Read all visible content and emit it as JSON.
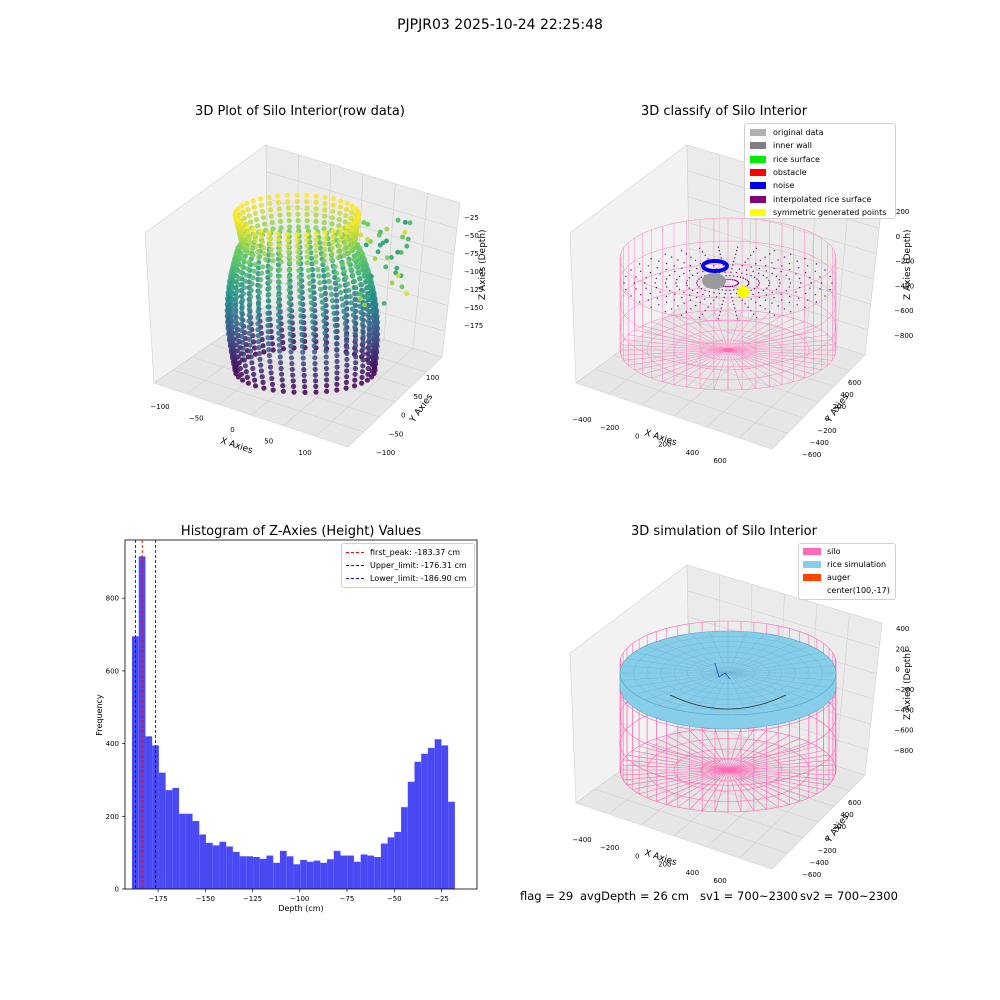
{
  "suptitle": "PJPJR03 2025-10-24 22:25:48",
  "panels": {
    "raw": {
      "title": "3D Plot of Silo Interior(row data)",
      "xlabel": "X Axies",
      "ylabel": "Y Axies",
      "zlabel": "Z Axies (Depth)",
      "xticks": [
        "−100",
        "−50",
        "0",
        "50",
        "100"
      ],
      "yticks": [
        "100",
        "50",
        "0",
        "−50",
        "−100"
      ],
      "zticks": [
        "−25",
        "−50",
        "−75",
        "−100",
        "−125",
        "−150",
        "−175"
      ]
    },
    "classify": {
      "title": "3D classify of Silo Interior",
      "xlabel": "X Axies",
      "ylabel": "Y Axies",
      "zlabel": "Z Axies (Depth)",
      "xticks": [
        "−400",
        "−200",
        "0",
        "200",
        "400",
        "600"
      ],
      "yticks": [
        "600",
        "400",
        "200",
        "0",
        "−200",
        "−400",
        "−600"
      ],
      "zticks": [
        "200",
        "0",
        "−200",
        "−400",
        "−600",
        "−800"
      ],
      "legend": [
        {
          "label": "original data",
          "color": "#b0b0b0"
        },
        {
          "label": "inner wall",
          "color": "#808080"
        },
        {
          "label": "rice surface",
          "color": "#00ee00"
        },
        {
          "label": "obstacle",
          "color": "#ff0000"
        },
        {
          "label": "noise",
          "color": "#0000ee"
        },
        {
          "label": "interpolated rice surface",
          "color": "#800080"
        },
        {
          "label": "symmetric generated points",
          "color": "#ffff00"
        }
      ]
    },
    "histogram": {
      "title": "Histogram of Z-Axies (Height) Values",
      "xlabel": "Depth (cm)",
      "ylabel": "Frequency",
      "legend": [
        {
          "label": "first_peak: -183.37 cm",
          "color": "#ff0000"
        },
        {
          "label": "Upper_limit: -176.31 cm",
          "color": "#0000ff"
        },
        {
          "label": "Lower_limit: -186.90 cm",
          "color": "#0000ff"
        }
      ]
    },
    "simulation": {
      "title": "3D simulation of Silo Interior",
      "xlabel": "X Axies",
      "ylabel": "Y Axies",
      "zlabel": "Z Axies (Depth)",
      "xticks": [
        "−400",
        "−200",
        "0",
        "200",
        "400",
        "600"
      ],
      "yticks": [
        "600",
        "400",
        "200",
        "0",
        "−200",
        "−400",
        "−600"
      ],
      "zticks": [
        "400",
        "200",
        "0",
        "−200",
        "−400",
        "−600",
        "−800"
      ],
      "legend": [
        {
          "label": "silo",
          "color": "#ff69b4"
        },
        {
          "label": "rice simulation",
          "color": "#87ceeb"
        },
        {
          "label": "auger",
          "color": "#ff4500"
        },
        {
          "label": "center(100,-17)",
          "color": "none"
        }
      ]
    }
  },
  "footer": {
    "flag": "flag = 29",
    "avg": "avgDepth = 26 cm",
    "sv1": "sv1 = 700~2300",
    "sv2": "sv2 = 700~2300"
  },
  "colors": {
    "hist_bar": "#4a4af5",
    "silo": "#ff69b4",
    "rice": "#87ceeb"
  },
  "chart_data": [
    {
      "type": "scatter",
      "title": "3D Plot of Silo Interior(row data)",
      "xlabel": "X Axies",
      "ylabel": "Y Axies",
      "zlabel": "Z Axies (Depth)",
      "xlim": [
        -120,
        130
      ],
      "ylim": [
        -110,
        120
      ],
      "zlim": [
        -190,
        -10
      ],
      "colormap": "viridis"
    },
    {
      "type": "scatter",
      "title": "3D classify of Silo Interior",
      "xlabel": "X Axies",
      "ylabel": "Y Axies",
      "zlabel": "Z Axies (Depth)",
      "xlim": [
        -500,
        700
      ],
      "ylim": [
        -650,
        650
      ],
      "zlim": [
        -900,
        300
      ],
      "series": [
        {
          "name": "original data"
        },
        {
          "name": "inner wall"
        },
        {
          "name": "rice surface"
        },
        {
          "name": "obstacle"
        },
        {
          "name": "noise"
        },
        {
          "name": "interpolated rice surface"
        },
        {
          "name": "symmetric generated points"
        }
      ]
    },
    {
      "type": "bar",
      "title": "Histogram of Z-Axies (Height) Values",
      "xlabel": "Depth (cm)",
      "ylabel": "Frequency",
      "xlim": [
        -192.5,
        -6.2
      ],
      "ylim": [
        0,
        960
      ],
      "xticks": [
        -175,
        -150,
        -125,
        -100,
        -75,
        -50,
        -25
      ],
      "yticks": [
        0,
        200,
        400,
        600,
        800
      ],
      "bin_start": -188.8,
      "bin_width": 3.56,
      "values": [
        695,
        915,
        420,
        395,
        320,
        272,
        278,
        207,
        207,
        187,
        150,
        127,
        120,
        130,
        117,
        102,
        90,
        90,
        88,
        83,
        92,
        72,
        105,
        90,
        68,
        80,
        75,
        78,
        72,
        82,
        105,
        92,
        92,
        75,
        95,
        92,
        88,
        125,
        142,
        157,
        225,
        295,
        350,
        372,
        388,
        412,
        395,
        240
      ],
      "vlines": [
        {
          "name": "first_peak: -183.37 cm",
          "x": -183.37,
          "color": "#ff0000"
        },
        {
          "name": "Upper_limit: -176.31 cm",
          "x": -176.31,
          "color": "#0000ff"
        },
        {
          "name": "Lower_limit: -186.90 cm",
          "x": -186.9,
          "color": "#0000ff"
        }
      ]
    },
    {
      "type": "area",
      "title": "3D simulation of Silo Interior",
      "xlabel": "X Axies",
      "ylabel": "Y Axies",
      "zlabel": "Z Axies (Depth)",
      "xlim": [
        -500,
        700
      ],
      "ylim": [
        -650,
        650
      ],
      "zlim": [
        -900,
        450
      ],
      "series": [
        {
          "name": "silo"
        },
        {
          "name": "rice simulation"
        },
        {
          "name": "auger"
        },
        {
          "name": "center(100,-17)"
        }
      ]
    }
  ]
}
